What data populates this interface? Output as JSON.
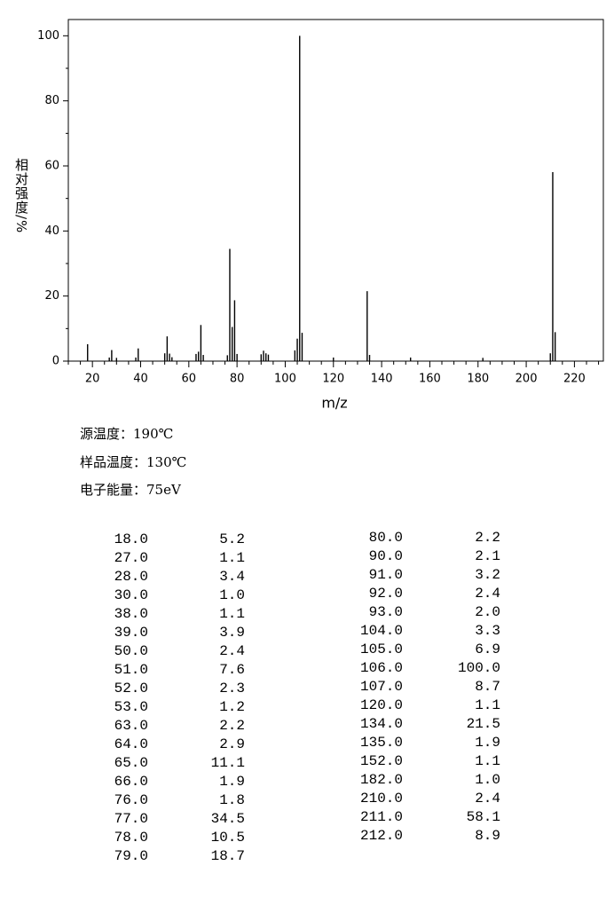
{
  "chart_data": {
    "type": "bar",
    "x_label": "m/z",
    "y_label": "相对强度/%",
    "x": [
      18,
      27,
      28,
      30,
      38,
      39,
      50,
      51,
      52,
      53,
      63,
      64,
      65,
      66,
      76,
      77,
      78,
      79,
      80,
      90,
      91,
      92,
      93,
      104,
      105,
      106,
      107,
      120,
      134,
      135,
      152,
      182,
      210,
      211,
      212
    ],
    "values": [
      5.2,
      1.1,
      3.4,
      1.0,
      1.1,
      3.9,
      2.4,
      7.6,
      2.3,
      1.2,
      2.2,
      2.9,
      11.1,
      1.9,
      1.8,
      34.5,
      10.5,
      18.7,
      2.2,
      2.1,
      3.2,
      2.4,
      2.0,
      3.3,
      6.9,
      100.0,
      8.7,
      1.1,
      21.5,
      1.9,
      1.1,
      1.0,
      2.4,
      58.1,
      8.9
    ],
    "color": "#000000",
    "xlim": [
      10,
      232
    ],
    "ylim": [
      0,
      105
    ],
    "xticks": [
      20,
      40,
      60,
      80,
      100,
      120,
      140,
      160,
      180,
      200,
      220
    ],
    "xminorticks": [
      10,
      15,
      25,
      30,
      35,
      45,
      50,
      55,
      65,
      70,
      75,
      85,
      90,
      95,
      105,
      110,
      115,
      125,
      130,
      135,
      145,
      150,
      155,
      165,
      170,
      175,
      185,
      190,
      195,
      205,
      210,
      215,
      225,
      230
    ],
    "yticks": [
      0,
      20,
      40,
      60,
      80,
      100
    ],
    "yminorticks": [
      10,
      30,
      50,
      70,
      90
    ]
  },
  "info": [
    "源温度：190℃",
    "样品温度：130℃",
    "电子能量：75eV"
  ],
  "table": {
    "rows": [
      [
        "18.0",
        "5.2"
      ],
      [
        "27.0",
        "1.1"
      ],
      [
        "28.0",
        "3.4"
      ],
      [
        "30.0",
        "1.0"
      ],
      [
        "38.0",
        "1.1"
      ],
      [
        "39.0",
        "3.9"
      ],
      [
        "50.0",
        "2.4"
      ],
      [
        "51.0",
        "7.6"
      ],
      [
        "52.0",
        "2.3"
      ],
      [
        "53.0",
        "1.2"
      ],
      [
        "63.0",
        "2.2"
      ],
      [
        "64.0",
        "2.9"
      ],
      [
        "65.0",
        "11.1"
      ],
      [
        "66.0",
        "1.9"
      ],
      [
        "76.0",
        "1.8"
      ],
      [
        "77.0",
        "34.5"
      ],
      [
        "78.0",
        "10.5"
      ],
      [
        "79.0",
        "18.7"
      ],
      [
        "80.0",
        "2.2"
      ],
      [
        "90.0",
        "2.1"
      ],
      [
        "91.0",
        "3.2"
      ],
      [
        "92.0",
        "2.4"
      ],
      [
        "93.0",
        "2.0"
      ],
      [
        "104.0",
        "3.3"
      ],
      [
        "105.0",
        "6.9"
      ],
      [
        "106.0",
        "100.0"
      ],
      [
        "107.0",
        "8.7"
      ],
      [
        "120.0",
        "1.1"
      ],
      [
        "134.0",
        "21.5"
      ],
      [
        "135.0",
        "1.9"
      ],
      [
        "152.0",
        "1.1"
      ],
      [
        "182.0",
        "1.0"
      ],
      [
        "210.0",
        "2.4"
      ],
      [
        "211.0",
        "58.1"
      ],
      [
        "212.0",
        "8.9"
      ]
    ]
  }
}
